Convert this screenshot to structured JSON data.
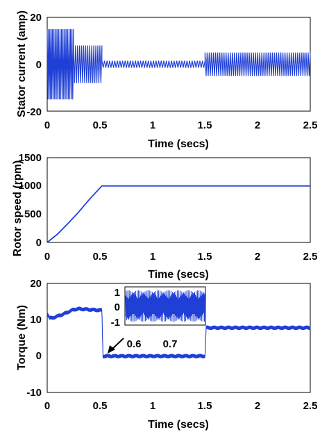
{
  "series_color": "#1f3fd6",
  "chart_data": [
    {
      "type": "line",
      "xlabel": "Time (secs)",
      "ylabel": "Stator current (amp)",
      "xlim": [
        0,
        2.5
      ],
      "ylim": [
        -20,
        20
      ],
      "xticks": [
        "0",
        "0.5",
        "1",
        "1.5",
        "2",
        "2.5"
      ],
      "yticks": [
        "-20",
        "0",
        "20"
      ],
      "envelope_note_free": true,
      "segments": [
        {
          "t0": 0.0,
          "t1": 0.05,
          "amplitude": 15,
          "cycles": 4
        },
        {
          "t0": 0.05,
          "t1": 0.25,
          "amplitude": 15,
          "cycles": 14
        },
        {
          "t0": 0.25,
          "t1": 0.52,
          "amplitude": 8,
          "cycles": 14
        },
        {
          "t0": 0.52,
          "t1": 1.5,
          "amplitude": 1.5,
          "cycles": 40
        },
        {
          "t0": 1.5,
          "t1": 2.5,
          "amplitude": 5,
          "cycles": 50
        }
      ]
    },
    {
      "type": "line",
      "xlabel": "Time (secs)",
      "ylabel": "Rotor speed (rpm)",
      "xlim": [
        0,
        2.5
      ],
      "ylim": [
        0,
        1500
      ],
      "xticks": [
        "0",
        "0.5",
        "1",
        "1.5",
        "2",
        "2.5"
      ],
      "yticks": [
        "0",
        "500",
        "1000",
        "1500"
      ],
      "x": [
        0,
        0.1,
        0.2,
        0.3,
        0.4,
        0.52,
        2.5
      ],
      "y": [
        0,
        150,
        340,
        540,
        760,
        1000,
        1000
      ]
    },
    {
      "type": "line",
      "xlabel": "Time (secs)",
      "ylabel": "Torque (Nm)",
      "xlim": [
        0,
        2.5
      ],
      "ylim": [
        -10,
        20
      ],
      "xticks": [
        "0",
        "0.5",
        "1",
        "1.5",
        "2",
        "2.5"
      ],
      "yticks": [
        "-10",
        "0",
        "10",
        "20"
      ],
      "x": [
        0,
        0.02,
        0.05,
        0.15,
        0.25,
        0.3,
        0.4,
        0.52,
        0.53,
        1.5,
        1.51,
        2.5
      ],
      "y": [
        12,
        10.5,
        10.5,
        11.5,
        12.8,
        13,
        12.8,
        12.6,
        0,
        0,
        7.8,
        7.8
      ],
      "noise": 0.6,
      "inset": {
        "xticks": [
          "0.6",
          "0.7"
        ],
        "yticks": [
          "1",
          "0",
          "-1"
        ],
        "ylim": [
          -1,
          1
        ],
        "amplitude": 0.85
      }
    }
  ]
}
